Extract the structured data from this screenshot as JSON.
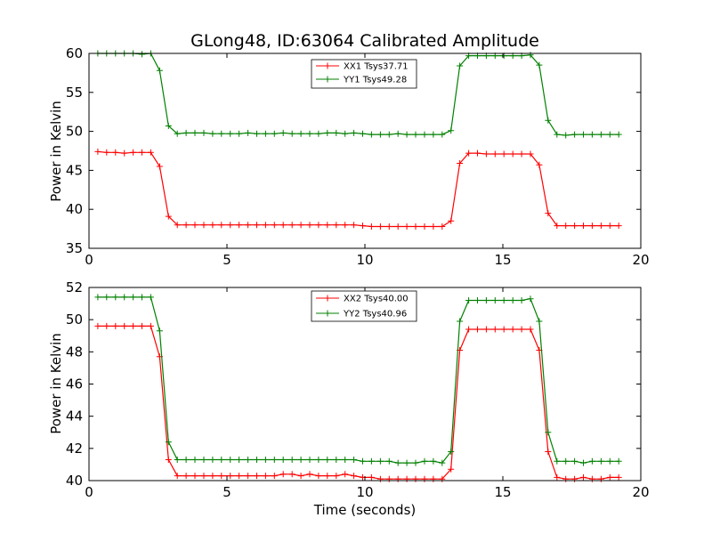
{
  "figure": {
    "title": "GLong48, ID:63064 Calibrated Amplitude"
  },
  "chart_data": [
    {
      "type": "line",
      "title": "GLong48, ID:63064 Calibrated Amplitude",
      "xlabel": "",
      "ylabel": "Power in Kelvin",
      "xlim": [
        0,
        20
      ],
      "ylim": [
        35,
        60
      ],
      "xticks": [
        "0",
        "5",
        "10",
        "15",
        "20"
      ],
      "yticks": [
        "35",
        "40",
        "45",
        "50",
        "55",
        "60"
      ],
      "grid": false,
      "legend_position": "top-center",
      "x": [
        0.32,
        0.64,
        0.96,
        1.28,
        1.6,
        1.92,
        2.24,
        2.56,
        2.88,
        3.2,
        3.52,
        3.84,
        4.16,
        4.48,
        4.8,
        5.12,
        5.44,
        5.76,
        6.08,
        6.4,
        6.72,
        7.04,
        7.36,
        7.68,
        8.0,
        8.32,
        8.64,
        8.96,
        9.28,
        9.6,
        9.92,
        10.24,
        10.56,
        10.88,
        11.2,
        11.52,
        11.84,
        12.16,
        12.48,
        12.8,
        13.12,
        13.44,
        13.76,
        14.08,
        14.4,
        14.72,
        15.04,
        15.36,
        15.68,
        16.0,
        16.32,
        16.64,
        16.96,
        17.28,
        17.6,
        17.92,
        18.24,
        18.56,
        18.88,
        19.2
      ],
      "series": [
        {
          "name": "XX1 Tsys37.71",
          "color": "#ff0000",
          "values": [
            47.4,
            47.3,
            47.3,
            47.2,
            47.3,
            47.3,
            47.3,
            45.5,
            39.1,
            38.0,
            38.0,
            38.0,
            38.0,
            38.0,
            38.0,
            38.0,
            38.0,
            38.0,
            38.0,
            38.0,
            38.0,
            38.0,
            38.0,
            38.0,
            38.0,
            38.0,
            38.0,
            38.0,
            38.0,
            38.0,
            37.9,
            37.8,
            37.8,
            37.8,
            37.8,
            37.8,
            37.8,
            37.8,
            37.8,
            37.8,
            38.5,
            45.9,
            47.2,
            47.2,
            47.1,
            47.1,
            47.1,
            47.1,
            47.1,
            47.1,
            45.7,
            39.5,
            37.9,
            37.9,
            37.9,
            37.9,
            37.9,
            37.9,
            37.9,
            37.9
          ]
        },
        {
          "name": "YY1 Tsys49.28",
          "color": "#008000",
          "values": [
            60.0,
            60.0,
            60.0,
            60.0,
            60.0,
            59.9,
            60.0,
            57.8,
            50.7,
            49.7,
            49.8,
            49.8,
            49.8,
            49.7,
            49.7,
            49.7,
            49.7,
            49.8,
            49.7,
            49.7,
            49.7,
            49.8,
            49.7,
            49.7,
            49.7,
            49.7,
            49.8,
            49.8,
            49.7,
            49.8,
            49.7,
            49.6,
            49.6,
            49.6,
            49.7,
            49.6,
            49.6,
            49.6,
            49.6,
            49.6,
            50.1,
            58.4,
            59.7,
            59.7,
            59.7,
            59.7,
            59.7,
            59.7,
            59.7,
            59.8,
            58.5,
            51.4,
            49.6,
            49.5,
            49.6,
            49.6,
            49.6,
            49.6,
            49.6,
            49.6
          ]
        }
      ]
    },
    {
      "type": "line",
      "title": "",
      "xlabel": "Time (seconds)",
      "ylabel": "Power in Kelvin",
      "xlim": [
        0,
        20
      ],
      "ylim": [
        40,
        52
      ],
      "xticks": [
        "0",
        "5",
        "10",
        "15",
        "20"
      ],
      "yticks": [
        "40",
        "42",
        "44",
        "46",
        "48",
        "50",
        "52"
      ],
      "grid": false,
      "legend_position": "top-center",
      "x": [
        0.32,
        0.64,
        0.96,
        1.28,
        1.6,
        1.92,
        2.24,
        2.56,
        2.88,
        3.2,
        3.52,
        3.84,
        4.16,
        4.48,
        4.8,
        5.12,
        5.44,
        5.76,
        6.08,
        6.4,
        6.72,
        7.04,
        7.36,
        7.68,
        8.0,
        8.32,
        8.64,
        8.96,
        9.28,
        9.6,
        9.92,
        10.24,
        10.56,
        10.88,
        11.2,
        11.52,
        11.84,
        12.16,
        12.48,
        12.8,
        13.12,
        13.44,
        13.76,
        14.08,
        14.4,
        14.72,
        15.04,
        15.36,
        15.68,
        16.0,
        16.32,
        16.64,
        16.96,
        17.28,
        17.6,
        17.92,
        18.24,
        18.56,
        18.88,
        19.2
      ],
      "series": [
        {
          "name": "XX2 Tsys40.00",
          "color": "#ff0000",
          "values": [
            49.6,
            49.6,
            49.6,
            49.6,
            49.6,
            49.6,
            49.6,
            47.7,
            41.3,
            40.3,
            40.3,
            40.3,
            40.3,
            40.3,
            40.3,
            40.3,
            40.3,
            40.3,
            40.3,
            40.3,
            40.3,
            40.4,
            40.4,
            40.3,
            40.4,
            40.3,
            40.3,
            40.3,
            40.4,
            40.3,
            40.2,
            40.2,
            40.1,
            40.1,
            40.1,
            40.1,
            40.1,
            40.1,
            40.1,
            40.1,
            40.7,
            48.1,
            49.4,
            49.4,
            49.4,
            49.4,
            49.4,
            49.4,
            49.4,
            49.4,
            48.1,
            41.8,
            40.2,
            40.1,
            40.1,
            40.2,
            40.1,
            40.1,
            40.2,
            40.2
          ]
        },
        {
          "name": "YY2 Tsys40.96",
          "color": "#008000",
          "values": [
            51.4,
            51.4,
            51.4,
            51.4,
            51.4,
            51.4,
            51.4,
            49.3,
            42.4,
            41.3,
            41.3,
            41.3,
            41.3,
            41.3,
            41.3,
            41.3,
            41.3,
            41.3,
            41.3,
            41.3,
            41.3,
            41.3,
            41.3,
            41.3,
            41.3,
            41.3,
            41.3,
            41.3,
            41.3,
            41.3,
            41.2,
            41.2,
            41.2,
            41.2,
            41.1,
            41.1,
            41.1,
            41.2,
            41.2,
            41.1,
            41.8,
            49.9,
            51.2,
            51.2,
            51.2,
            51.2,
            51.2,
            51.2,
            51.2,
            51.3,
            49.9,
            43.0,
            41.2,
            41.2,
            41.2,
            41.1,
            41.2,
            41.2,
            41.2,
            41.2
          ]
        }
      ]
    }
  ]
}
